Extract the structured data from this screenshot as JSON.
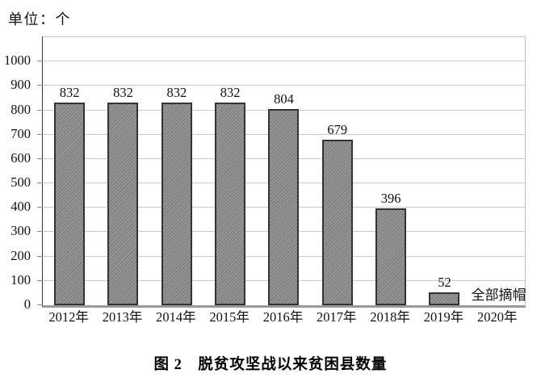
{
  "unit_label": "单位：个",
  "caption": "图 2　脱贫攻坚战以来贫困县数量",
  "colors": {
    "bar_fill": "#8e8e8e",
    "bar_hatch_light": "#9c9c9c",
    "bar_hatch_dark": "#7c7c7c",
    "bar_border": "#333333",
    "gridline": "#cacaca",
    "axis": "#3a3a3a",
    "text": "#111111"
  },
  "chart_data": {
    "type": "bar",
    "title": "图 2　脱贫攻坚战以来贫困县数量",
    "xlabel": "",
    "ylabel": "单位：个",
    "categories": [
      "2012年",
      "2013年",
      "2014年",
      "2015年",
      "2016年",
      "2017年",
      "2018年",
      "2019年",
      "2020年"
    ],
    "values": [
      832,
      832,
      832,
      832,
      804,
      679,
      396,
      52,
      null
    ],
    "annotations": [
      {
        "category": "2020年",
        "text": "全部摘帽"
      }
    ],
    "ylim": [
      0,
      1100
    ],
    "yticks": [
      0,
      100,
      200,
      300,
      400,
      500,
      600,
      700,
      800,
      900,
      1000
    ],
    "grid": true,
    "legend": false,
    "bar_hatch": "diagonal-forward"
  }
}
